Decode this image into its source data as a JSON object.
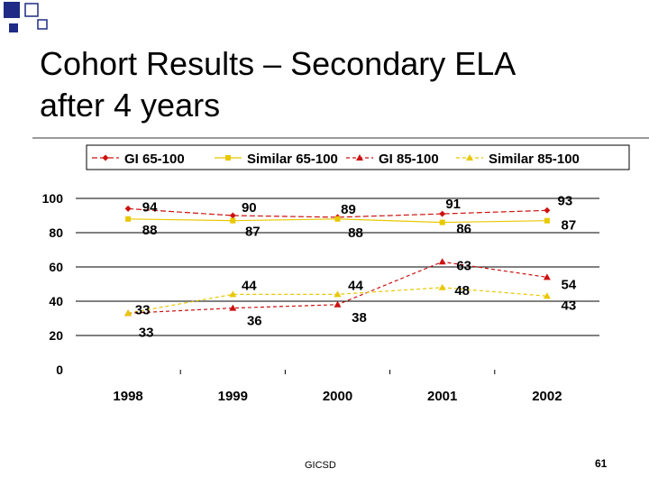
{
  "slide": {
    "title": "Cohort Results – Secondary ELA\nafter 4 years",
    "footer": "GICSD",
    "page_number": "61"
  },
  "chart_data": {
    "type": "line",
    "categories": [
      "1998",
      "1999",
      "2000",
      "2001",
      "2002"
    ],
    "ylim": [
      0,
      100
    ],
    "yticks": [
      0,
      20,
      40,
      60,
      80,
      100
    ],
    "grid": true,
    "legend_position": "top",
    "series": [
      {
        "name": "GI 65-100",
        "values": [
          94,
          90,
          89,
          91,
          93
        ],
        "labels": [
          "94",
          "90",
          "89",
          "91",
          "93"
        ],
        "color": "#cc1111",
        "marker": "diamond",
        "dash": "6,3"
      },
      {
        "name": "Similar 65-100",
        "values": [
          88,
          87,
          88,
          86,
          87
        ],
        "labels": [
          "88",
          "87",
          "88",
          "86",
          "87"
        ],
        "color": "#e8c800",
        "marker": "square",
        "dash": ""
      },
      {
        "name": "GI 85-100",
        "values": [
          33,
          36,
          38,
          63,
          54
        ],
        "labels": [
          "33",
          "36",
          "38",
          "63",
          "54"
        ],
        "color": "#cc1111",
        "marker": "triangle",
        "dash": "4,3"
      },
      {
        "name": "Similar 85-100",
        "values": [
          33,
          44,
          44,
          48,
          43
        ],
        "labels": [
          "33",
          "44",
          "44",
          "48",
          "43"
        ],
        "color": "#e8c800",
        "marker": "triangle",
        "dash": "4,3"
      }
    ]
  }
}
